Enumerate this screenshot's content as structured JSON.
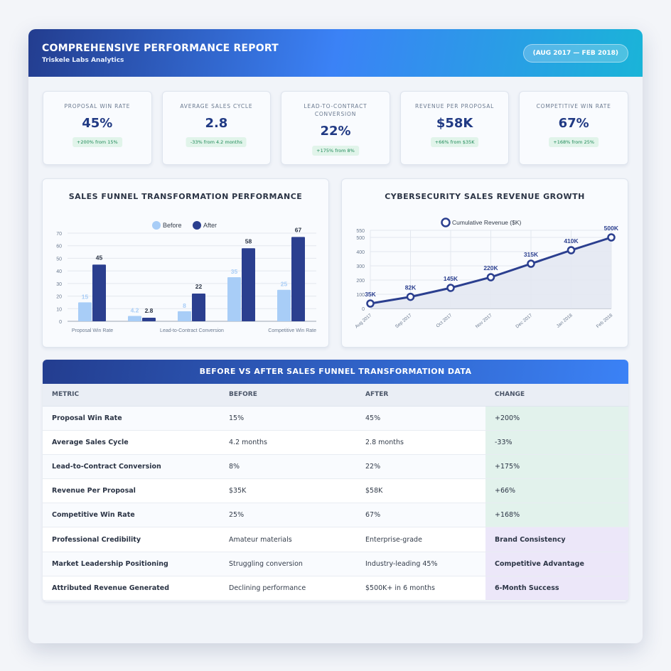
{
  "header": {
    "title": "COMPREHENSIVE PERFORMANCE REPORT",
    "subtitle": "Triskele Labs Analytics",
    "period": "(AUG 2017 — FEB 2018)"
  },
  "kpis": [
    {
      "label": "PROPOSAL WIN RATE",
      "value": "45%",
      "delta": "+200% from 15%"
    },
    {
      "label": "AVERAGE SALES CYCLE",
      "value": "2.8",
      "delta": "-33% from 4.2 months"
    },
    {
      "label": "LEAD-TO-CONTRACT CONVERSION",
      "value": "22%",
      "delta": "+175% from 8%"
    },
    {
      "label": "REVENUE PER PROPOSAL",
      "value": "$58K",
      "delta": "+66% from $35K"
    },
    {
      "label": "COMPETITIVE WIN RATE",
      "value": "67%",
      "delta": "+168% from 25%"
    }
  ],
  "colors": {
    "before": "#a8cdf7",
    "after": "#2b3f8f",
    "line": "#2b3f8f",
    "area": "#e3e8f2"
  },
  "chart_data": [
    {
      "type": "bar",
      "title": "SALES FUNNEL TRANSFORMATION PERFORMANCE",
      "categories": [
        "Proposal Win Rate",
        "Average Sales Cycle",
        "Lead-to-Contract Conversion",
        "Revenue Per Proposal",
        "Competitive Win Rate"
      ],
      "tick_labels": [
        "Proposal Win Rate",
        "",
        "Lead-to-Contract Conversion",
        "",
        "Competitive Win Rate"
      ],
      "series": [
        {
          "name": "Before",
          "values": [
            15,
            4.2,
            8,
            35,
            25
          ]
        },
        {
          "name": "After",
          "values": [
            45,
            2.8,
            22,
            58,
            67
          ]
        }
      ],
      "yticks": [
        0,
        10,
        20,
        30,
        40,
        50,
        60,
        70
      ],
      "ylim": [
        0,
        70
      ],
      "legend": "top-center",
      "grid": true
    },
    {
      "type": "line",
      "title": "CYBERSECURITY SALES REVENUE GROWTH",
      "x": [
        "Aug 2017",
        "Sep 2017",
        "Oct 2017",
        "Nov 2017",
        "Dec 2017",
        "Jan 2018",
        "Feb 2018"
      ],
      "series": [
        {
          "name": "Cumulative Revenue ($K)",
          "values": [
            35,
            82,
            145,
            220,
            315,
            410,
            500
          ],
          "labels": [
            "35K",
            "82K",
            "145K",
            "220K",
            "315K",
            "410K",
            "500K"
          ]
        }
      ],
      "yticks": [
        0,
        100,
        200,
        300,
        400,
        500,
        550
      ],
      "ylim": [
        0,
        550
      ],
      "legend": "top-center",
      "grid": true
    }
  ],
  "table": {
    "title": "BEFORE VS AFTER SALES FUNNEL TRANSFORMATION DATA",
    "headers": [
      "METRIC",
      "BEFORE",
      "AFTER",
      "CHANGE"
    ],
    "rows": [
      {
        "metric": "Proposal Win Rate",
        "before": "15%",
        "after": "45%",
        "change": "+200%"
      },
      {
        "metric": "Average Sales Cycle",
        "before": "4.2 months",
        "after": "2.8 months",
        "change": "-33%"
      },
      {
        "metric": "Lead-to-Contract Conversion",
        "before": "8%",
        "after": "22%",
        "change": "+175%"
      },
      {
        "metric": "Revenue Per Proposal",
        "before": "$35K",
        "after": "$58K",
        "change": "+66%"
      },
      {
        "metric": "Competitive Win Rate",
        "before": "25%",
        "after": "67%",
        "change": "+168%"
      },
      {
        "metric": "Professional Credibility",
        "before": "Amateur materials",
        "after": "Enterprise-grade",
        "change": "Brand Consistency"
      },
      {
        "metric": "Market Leadership Positioning",
        "before": "Struggling conversion",
        "after": "Industry-leading 45%",
        "change": "Competitive Advantage"
      },
      {
        "metric": "Attributed Revenue Generated",
        "before": "Declining performance",
        "after": "$500K+ in 6 months",
        "change": "6-Month Success"
      }
    ]
  }
}
